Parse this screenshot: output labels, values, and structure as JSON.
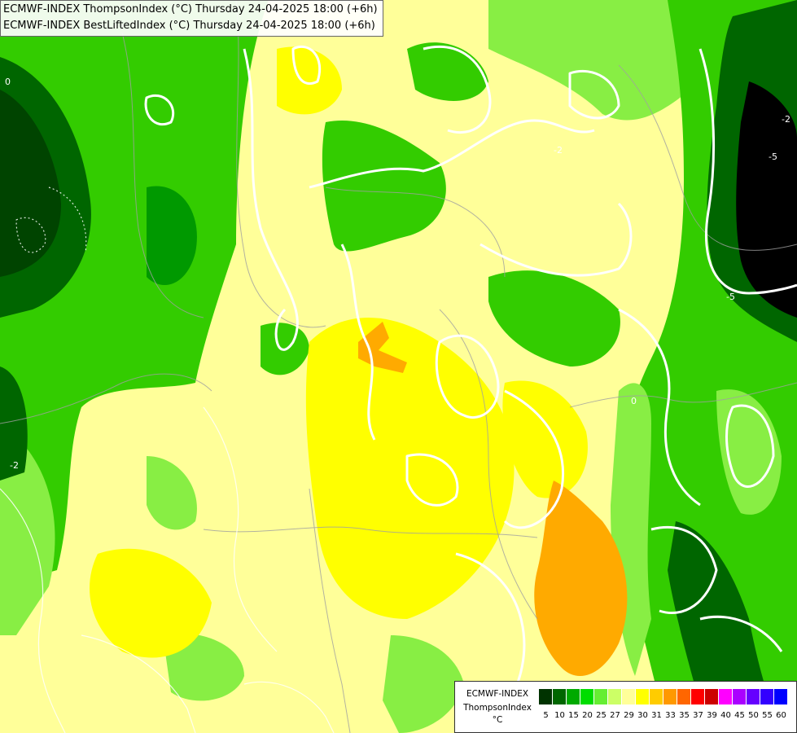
{
  "title_lines": [
    "ECMWF-INDEX ThompsonIndex (°C) Thursday 24-04-2025 18:00 (+6h)",
    "ECMWF-INDEX BestLiftedIndex (°C) Thursday 24-04-2025 18:00 (+6h)"
  ],
  "legend": {
    "model": "ECMWF-INDEX",
    "parameter": "ThompsonIndex",
    "unit": "°C",
    "ticks": [
      "5",
      "10",
      "15",
      "20",
      "25",
      "27",
      "29",
      "30",
      "31",
      "33",
      "35",
      "37",
      "39",
      "40",
      "45",
      "50",
      "55",
      "60"
    ],
    "colors": [
      "#000000",
      "#000000",
      "#000000",
      "#000000",
      "#003300",
      "#006600",
      "#00aa00",
      "#00dd00",
      "#66ee33",
      "#ccff66",
      "#ffff99",
      "#ffff00",
      "#ffcc00",
      "#ff9900",
      "#ff6600",
      "#ff0000",
      "#cc0000",
      "#ff00ff",
      "#aa00ff",
      "#6600ff",
      "#3300ff",
      "#0000ff"
    ]
  },
  "contour_labels": [
    "-5",
    "-2",
    "-5",
    "-2",
    "0",
    "0",
    "-2"
  ]
}
